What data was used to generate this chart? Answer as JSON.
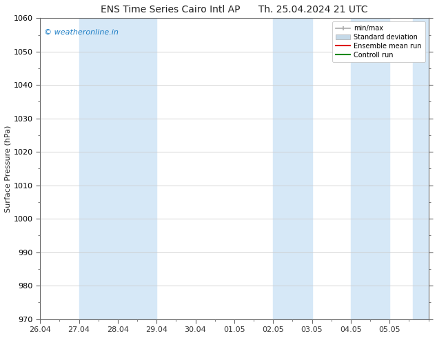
{
  "title_left": "ENS Time Series Cairo Intl AP",
  "title_right": "Th. 25.04.2024 21 UTC",
  "ylabel": "Surface Pressure (hPa)",
  "ylim": [
    970,
    1060
  ],
  "yticks": [
    970,
    980,
    990,
    1000,
    1010,
    1020,
    1030,
    1040,
    1050,
    1060
  ],
  "xtick_labels": [
    "26.04",
    "27.04",
    "28.04",
    "29.04",
    "30.04",
    "01.05",
    "02.05",
    "03.05",
    "04.05",
    "05.05"
  ],
  "xtick_offsets_days": [
    0,
    1,
    2,
    3,
    4,
    5,
    6,
    7,
    8,
    9
  ],
  "xlim_days": [
    0,
    10
  ],
  "shaded_bands_days": [
    {
      "x_start": 1,
      "x_end": 3
    },
    {
      "x_start": 6,
      "x_end": 7
    },
    {
      "x_start": 8,
      "x_end": 9
    },
    {
      "x_start": 9.6,
      "x_end": 10
    }
  ],
  "band_color": "#d6e8f7",
  "watermark_text": "© weatheronline.in",
  "watermark_color": "#1a7cc4",
  "legend_minmax_color": "#aaaaaa",
  "legend_std_color": "#c5d9e8",
  "legend_ens_color": "#dd0000",
  "legend_ctrl_color": "#008800",
  "background_color": "#ffffff",
  "grid_color": "#cccccc",
  "spine_color": "#666666",
  "tick_color": "#333333",
  "font_color": "#222222",
  "title_fontsize": 10,
  "axis_fontsize": 8,
  "watermark_fontsize": 8
}
